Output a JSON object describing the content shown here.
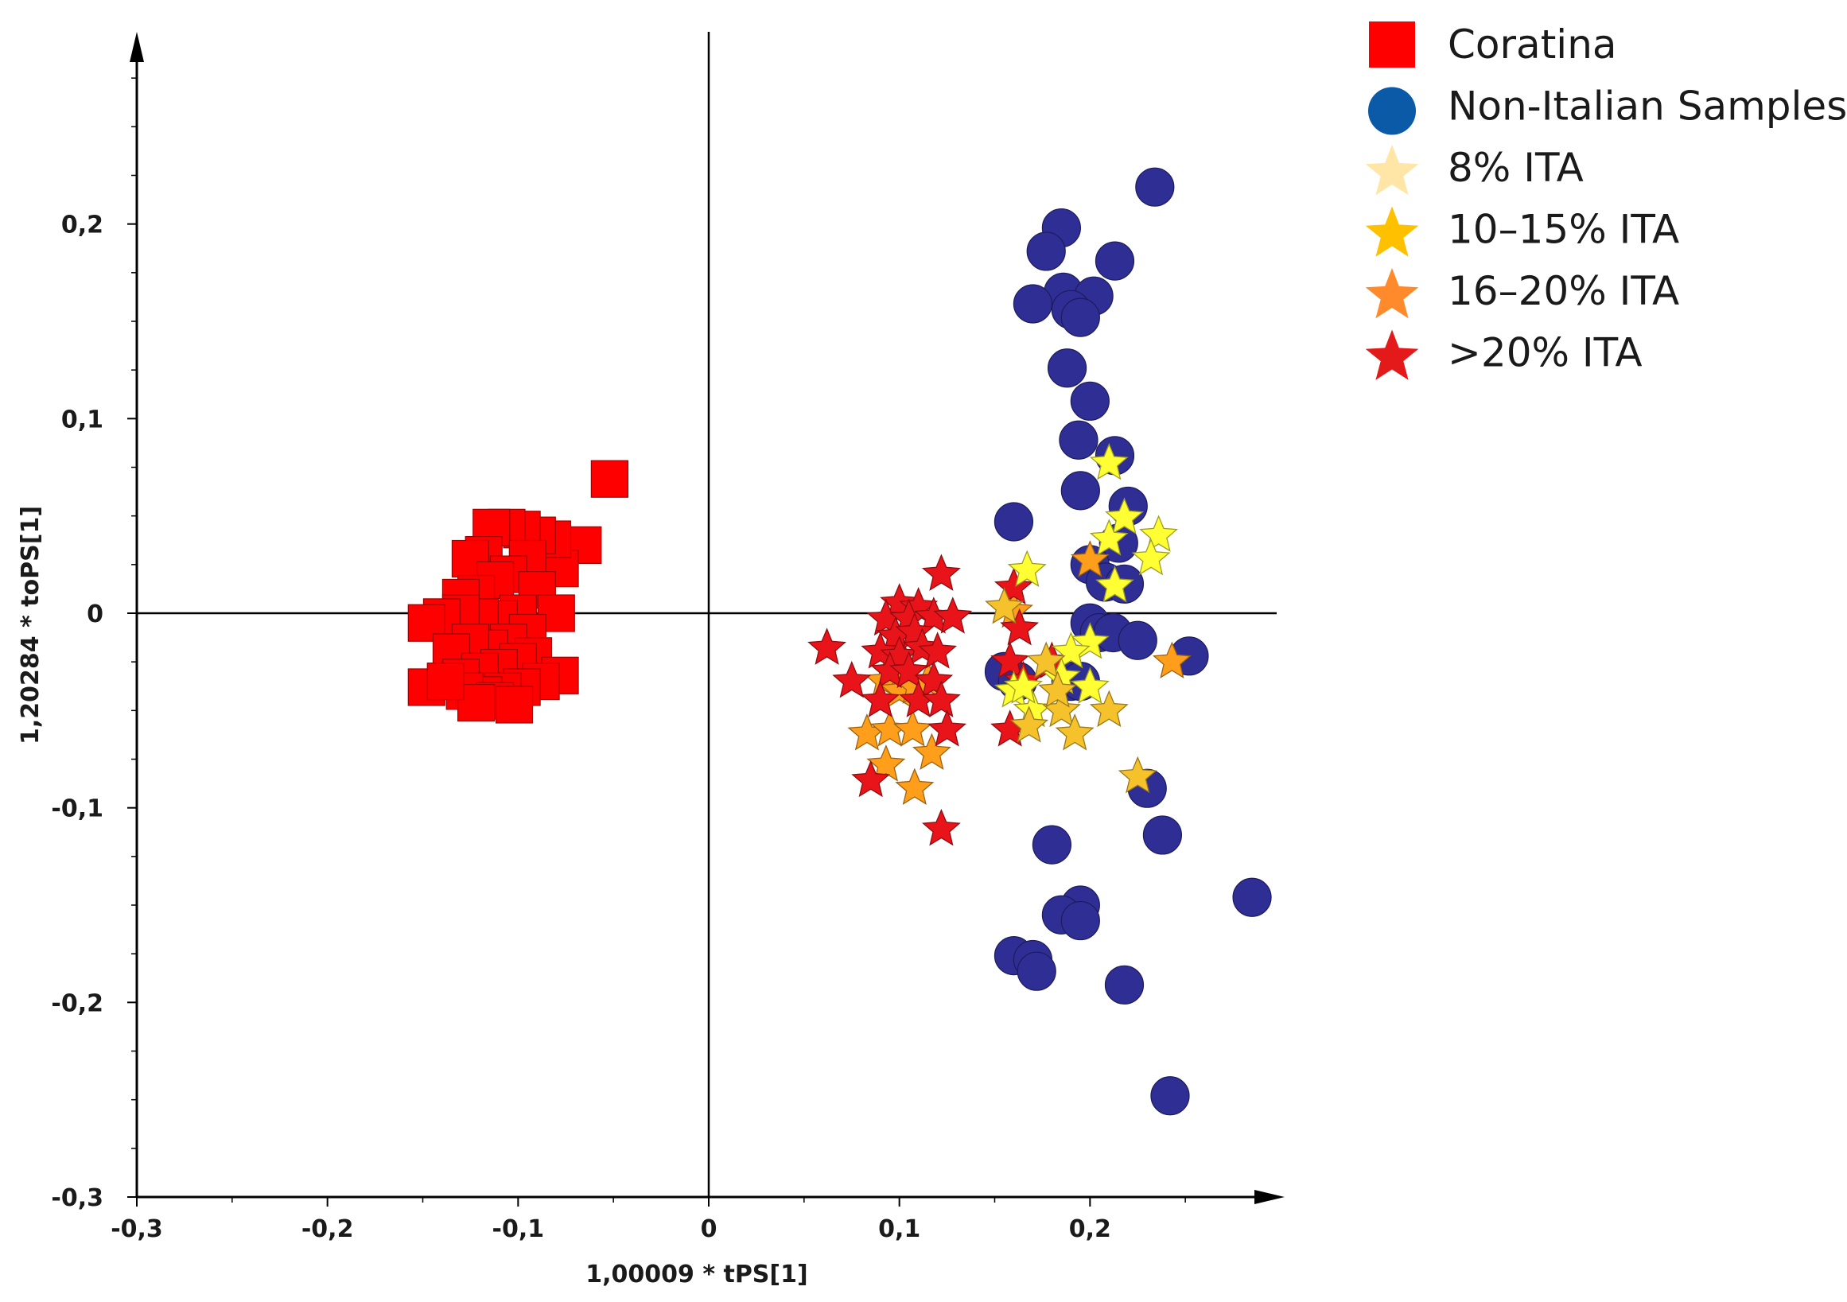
{
  "chart_data": {
    "type": "scatter",
    "title": "",
    "xlabel": "1,00009 * tPS[1]",
    "ylabel": "1,20284 * toPS[1]",
    "xlim": [
      -0.3,
      0.3
    ],
    "ylim": [
      -0.3,
      0.3
    ],
    "xticks": [
      -0.3,
      -0.2,
      -0.1,
      0,
      0.1,
      0.2
    ],
    "xtick_labels": [
      "-0,3",
      "-0,2",
      "-0,1",
      "0",
      "0,1",
      "0,2"
    ],
    "yticks": [
      -0.3,
      -0.2,
      -0.1,
      0,
      0.1,
      0.2
    ],
    "ytick_labels": [
      "-0,3",
      "-0,2",
      "-0,1",
      "0",
      "0,1",
      "0,2"
    ],
    "grid": false,
    "legend_position": "top-right",
    "series": [
      {
        "name": "Coratina",
        "marker": "square",
        "color": "#ff0000",
        "points": [
          [
            -0.052,
            0.069
          ],
          [
            -0.066,
            0.035
          ],
          [
            -0.078,
            0.023
          ],
          [
            -0.082,
            0.038
          ],
          [
            -0.09,
            0.04
          ],
          [
            -0.098,
            0.043
          ],
          [
            -0.106,
            0.044
          ],
          [
            -0.114,
            0.044
          ],
          [
            -0.118,
            0.03
          ],
          [
            -0.125,
            0.028
          ],
          [
            -0.095,
            0.028
          ],
          [
            -0.105,
            0.02
          ],
          [
            -0.112,
            0.017
          ],
          [
            -0.122,
            0.01
          ],
          [
            -0.13,
            0.008
          ],
          [
            -0.09,
            0.012
          ],
          [
            -0.08,
            0.0
          ],
          [
            -0.1,
            0.0
          ],
          [
            -0.11,
            -0.003
          ],
          [
            -0.12,
            -0.002
          ],
          [
            -0.13,
            0.0
          ],
          [
            -0.14,
            -0.002
          ],
          [
            -0.148,
            -0.005
          ],
          [
            -0.095,
            -0.01
          ],
          [
            -0.105,
            -0.015
          ],
          [
            -0.115,
            -0.018
          ],
          [
            -0.125,
            -0.015
          ],
          [
            -0.135,
            -0.02
          ],
          [
            -0.092,
            -0.022
          ],
          [
            -0.1,
            -0.025
          ],
          [
            -0.11,
            -0.028
          ],
          [
            -0.12,
            -0.03
          ],
          [
            -0.13,
            -0.033
          ],
          [
            -0.078,
            -0.032
          ],
          [
            -0.088,
            -0.035
          ],
          [
            -0.098,
            -0.038
          ],
          [
            -0.108,
            -0.04
          ],
          [
            -0.118,
            -0.042
          ],
          [
            -0.128,
            -0.04
          ],
          [
            -0.148,
            -0.038
          ],
          [
            -0.112,
            -0.045
          ],
          [
            -0.122,
            -0.046
          ],
          [
            -0.102,
            -0.047
          ],
          [
            -0.138,
            -0.035
          ]
        ]
      },
      {
        "name": "Non-Italian Samples",
        "marker": "circle",
        "color": "#2e2e94",
        "legend_color": "#0b5aa8",
        "points": [
          [
            0.234,
            0.219
          ],
          [
            0.185,
            0.198
          ],
          [
            0.177,
            0.186
          ],
          [
            0.213,
            0.181
          ],
          [
            0.186,
            0.165
          ],
          [
            0.202,
            0.163
          ],
          [
            0.17,
            0.159
          ],
          [
            0.19,
            0.156
          ],
          [
            0.195,
            0.152
          ],
          [
            0.188,
            0.126
          ],
          [
            0.2,
            0.109
          ],
          [
            0.194,
            0.089
          ],
          [
            0.213,
            0.081
          ],
          [
            0.195,
            0.063
          ],
          [
            0.22,
            0.055
          ],
          [
            0.16,
            0.047
          ],
          [
            0.215,
            0.036
          ],
          [
            0.2,
            0.025
          ],
          [
            0.208,
            0.016
          ],
          [
            0.218,
            0.015
          ],
          [
            0.2,
            -0.005
          ],
          [
            0.205,
            -0.01
          ],
          [
            0.212,
            -0.01
          ],
          [
            0.225,
            -0.014
          ],
          [
            0.252,
            -0.022
          ],
          [
            0.155,
            -0.03
          ],
          [
            0.162,
            -0.035
          ],
          [
            0.19,
            -0.035
          ],
          [
            0.195,
            -0.035
          ],
          [
            0.23,
            -0.09
          ],
          [
            0.238,
            -0.114
          ],
          [
            0.18,
            -0.119
          ],
          [
            0.285,
            -0.146
          ],
          [
            0.195,
            -0.15
          ],
          [
            0.185,
            -0.155
          ],
          [
            0.195,
            -0.158
          ],
          [
            0.16,
            -0.176
          ],
          [
            0.17,
            -0.178
          ],
          [
            0.172,
            -0.184
          ],
          [
            0.218,
            -0.191
          ],
          [
            0.242,
            -0.248
          ]
        ]
      },
      {
        "name": "8% ITA",
        "marker": "star",
        "color": "#ffff33",
        "legend_color": "#ffe6a6",
        "points": [
          [
            0.21,
            0.077
          ],
          [
            0.218,
            0.049
          ],
          [
            0.236,
            0.04
          ],
          [
            0.21,
            0.038
          ],
          [
            0.167,
            0.022
          ],
          [
            0.232,
            0.028
          ],
          [
            0.213,
            0.014
          ],
          [
            0.2,
            -0.015
          ],
          [
            0.19,
            -0.02
          ],
          [
            0.185,
            -0.033
          ],
          [
            0.16,
            -0.04
          ],
          [
            0.2,
            -0.038
          ],
          [
            0.17,
            -0.05
          ],
          [
            0.165,
            -0.038
          ]
        ]
      },
      {
        "name": "10–15% ITA",
        "marker": "star",
        "color": "#f6c22c",
        "legend_color": "#ffc000",
        "points": [
          [
            0.155,
            0.003
          ],
          [
            0.177,
            -0.025
          ],
          [
            0.185,
            -0.05
          ],
          [
            0.21,
            -0.05
          ],
          [
            0.192,
            -0.062
          ],
          [
            0.225,
            -0.084
          ],
          [
            0.168,
            -0.058
          ],
          [
            0.183,
            -0.04
          ]
        ]
      },
      {
        "name": "16–20% ITA",
        "marker": "star",
        "color": "#ff9e1a",
        "legend_color": "#ff8a2c",
        "points": [
          [
            0.092,
            -0.035
          ],
          [
            0.1,
            -0.04
          ],
          [
            0.108,
            -0.038
          ],
          [
            0.115,
            -0.035
          ],
          [
            0.083,
            -0.062
          ],
          [
            0.095,
            -0.06
          ],
          [
            0.107,
            -0.06
          ],
          [
            0.117,
            -0.072
          ],
          [
            0.093,
            -0.078
          ],
          [
            0.108,
            -0.09
          ],
          [
            0.2,
            0.027
          ],
          [
            0.243,
            -0.025
          ],
          [
            0.16,
            0.001
          ]
        ]
      },
      {
        "name": ">20% ITA",
        "marker": "star",
        "color": "#e8141a",
        "legend_color": "#e41a1a",
        "points": [
          [
            0.122,
            0.02
          ],
          [
            0.16,
            0.013
          ],
          [
            0.1,
            0.005
          ],
          [
            0.11,
            0.003
          ],
          [
            0.093,
            -0.003
          ],
          [
            0.105,
            -0.003
          ],
          [
            0.118,
            -0.002
          ],
          [
            0.128,
            -0.002
          ],
          [
            0.163,
            -0.008
          ],
          [
            0.098,
            -0.012
          ],
          [
            0.108,
            -0.01
          ],
          [
            0.09,
            -0.02
          ],
          [
            0.1,
            -0.022
          ],
          [
            0.112,
            -0.018
          ],
          [
            0.12,
            -0.02
          ],
          [
            0.062,
            -0.018
          ],
          [
            0.158,
            -0.025
          ],
          [
            0.095,
            -0.03
          ],
          [
            0.105,
            -0.03
          ],
          [
            0.118,
            -0.035
          ],
          [
            0.075,
            -0.035
          ],
          [
            0.165,
            -0.035
          ],
          [
            0.18,
            -0.025
          ],
          [
            0.09,
            -0.045
          ],
          [
            0.11,
            -0.045
          ],
          [
            0.122,
            -0.045
          ],
          [
            0.125,
            -0.06
          ],
          [
            0.17,
            -0.05
          ],
          [
            0.158,
            -0.06
          ],
          [
            0.085,
            -0.086
          ],
          [
            0.122,
            -0.111
          ]
        ]
      }
    ]
  }
}
